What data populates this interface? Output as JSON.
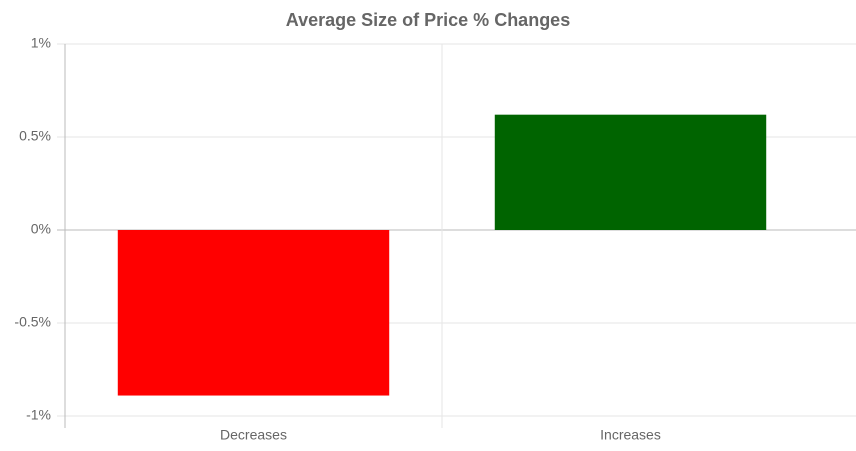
{
  "chart_data": {
    "type": "bar",
    "title": "Average Size of Price % Changes",
    "categories": [
      "Decreases",
      "Increases"
    ],
    "values": [
      -0.89,
      0.62
    ],
    "colors": [
      "#ff0000",
      "#006400"
    ],
    "ylim": [
      -1,
      1
    ],
    "yticks": [
      {
        "value": -1,
        "label": "-1%"
      },
      {
        "value": -0.5,
        "label": "-0.5%"
      },
      {
        "value": 0,
        "label": "0%"
      },
      {
        "value": 0.5,
        "label": "0.5%"
      },
      {
        "value": 1,
        "label": "1%"
      }
    ],
    "grid": true
  }
}
